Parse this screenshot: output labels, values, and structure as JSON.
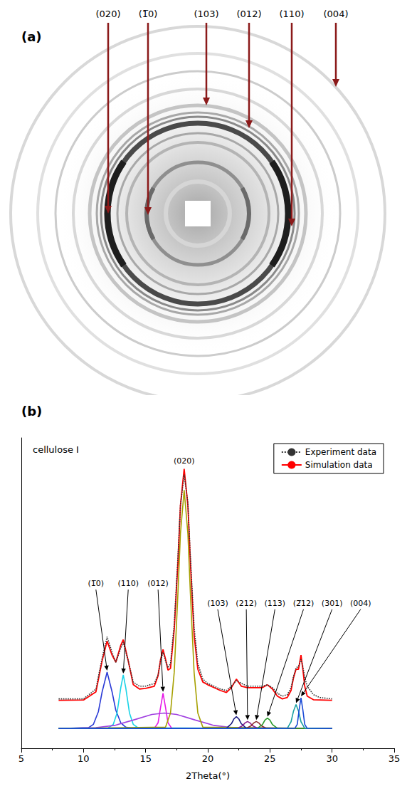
{
  "image_panel": {
    "letter": "(a)",
    "labels": [
      "(020)",
      "(1̅0)",
      "(103)",
      "(012)",
      "(110)",
      "(004)"
    ]
  },
  "chart_data": {
    "type": "line",
    "panel_label": "(b)",
    "annotations": [
      {
        "text": "cellulose I"
      }
    ],
    "xlabel": "2Theta(°)",
    "xlim": [
      5,
      35
    ],
    "xticks": [
      5,
      10,
      15,
      20,
      25,
      30,
      35
    ],
    "ylim": [
      0,
      110
    ],
    "tick_labels": "x",
    "grid": false,
    "legend": "upper right",
    "series": [
      {
        "name": "Experiment data",
        "color": "#333333",
        "line_style": "dotted",
        "x": [
          8,
          10,
          11,
          11.5,
          11.9,
          12.3,
          12.6,
          13.0,
          13.2,
          13.6,
          14.0,
          14.5,
          15.0,
          15.7,
          16.0,
          16.2,
          16.4,
          16.6,
          16.8,
          17.0,
          17.3,
          17.6,
          17.8,
          18.1,
          18.4,
          18.6,
          18.9,
          19.2,
          19.6,
          20.0,
          20.5,
          21.0,
          21.5,
          21.9,
          22.3,
          22.7,
          23.2,
          23.6,
          23.9,
          24.4,
          24.8,
          25.2,
          25.6,
          26.0,
          26.4,
          26.7,
          26.9,
          27.1,
          27.3,
          27.5,
          27.65,
          27.8,
          28.0,
          28.5,
          29,
          30
        ],
        "values": [
          17.5,
          17.5,
          21,
          32,
          39.5,
          34,
          30.5,
          35.5,
          37.5,
          31,
          23.5,
          22,
          22,
          23,
          26,
          31,
          34,
          31,
          28.5,
          30,
          44,
          68,
          86,
          97,
          87,
          68,
          43,
          30,
          24.5,
          23,
          22,
          21,
          20.5,
          22,
          24,
          23,
          22,
          22,
          22,
          22,
          22.5,
          21.5,
          19.5,
          18.5,
          19,
          21.5,
          25.5,
          28.5,
          29,
          31.5,
          29,
          25,
          22,
          19,
          18,
          17.5
        ]
      },
      {
        "name": "Simulation data",
        "color": "#ff0000",
        "line_style": "solid",
        "x": [
          8,
          10,
          11,
          11.5,
          11.9,
          12.3,
          12.6,
          13.0,
          13.2,
          13.6,
          14.0,
          14.5,
          15.0,
          15.7,
          16.0,
          16.2,
          16.4,
          16.6,
          16.8,
          17.0,
          17.3,
          17.6,
          17.8,
          18.1,
          18.4,
          18.6,
          18.9,
          19.2,
          19.6,
          20.0,
          20.5,
          21.0,
          21.5,
          21.9,
          22.3,
          22.7,
          23.2,
          23.6,
          23.9,
          24.4,
          24.8,
          25.2,
          25.6,
          26.0,
          26.4,
          26.7,
          26.9,
          27.1,
          27.3,
          27.5,
          27.65,
          27.8,
          28.0,
          28.5,
          30
        ],
        "values": [
          17,
          17.1,
          20,
          31,
          38,
          33,
          30.5,
          36.5,
          38.5,
          31,
          22.6,
          21,
          21.2,
          22,
          25.7,
          31.4,
          35,
          31.6,
          27.7,
          28.3,
          42,
          66,
          86,
          99,
          86,
          66,
          40,
          28,
          23.5,
          22.5,
          21.5,
          20.5,
          19.8,
          21.5,
          24.5,
          22,
          21.5,
          21.5,
          21.5,
          21.5,
          22.5,
          21,
          18.5,
          17.5,
          18,
          20.5,
          25,
          28,
          28,
          33,
          28,
          22,
          18.5,
          17.2,
          17
        ]
      }
    ],
    "components": [
      {
        "label": "(1̅0)",
        "color": "#2b3bd6",
        "x": [
          8,
          10.4,
          10.8,
          11.2,
          11.5,
          11.9,
          12.3,
          12.6,
          13.0,
          13.4,
          14.0,
          30
        ],
        "values": [
          7,
          7.3,
          8.5,
          13,
          20,
          27,
          20,
          13.5,
          9,
          7.5,
          7,
          7
        ]
      },
      {
        "label": "(110)",
        "color": "#19d3e6",
        "x": [
          8,
          12.0,
          12.4,
          12.7,
          13.0,
          13.2,
          13.4,
          13.7,
          14.0,
          14.4,
          30
        ],
        "values": [
          7,
          7.2,
          8.5,
          12.5,
          21.5,
          26,
          21.5,
          12.5,
          8.5,
          7.2,
          7
        ]
      },
      {
        "label": "(012)",
        "color": "#e619e6",
        "x": [
          8,
          15.7,
          16.0,
          16.2,
          16.4,
          16.6,
          16.8,
          17.1,
          30
        ],
        "values": [
          7,
          7.1,
          9.0,
          14.5,
          19.5,
          14.5,
          9.0,
          7.1,
          7
        ]
      },
      {
        "color": "#a040e0",
        "x": [
          8,
          11,
          12.5,
          14,
          15.5,
          16.5,
          17.5,
          19,
          20.5,
          22,
          30
        ],
        "values": [
          7,
          7.3,
          8.1,
          10.0,
          12.0,
          12.5,
          12.0,
          10.0,
          8.1,
          7.3,
          7
        ]
      },
      {
        "label": "(020)",
        "color": "#a6a000",
        "x": [
          8,
          16.6,
          17.0,
          17.3,
          17.6,
          17.8,
          18.1,
          18.4,
          18.6,
          18.9,
          19.2,
          19.6,
          30
        ],
        "values": [
          7,
          7.5,
          12.5,
          26.9,
          55,
          76,
          91.5,
          76,
          55,
          26.9,
          12.5,
          7.5,
          7
        ]
      },
      {
        "label": "(103)",
        "color": "#1a1a80",
        "x": [
          8,
          21.5,
          21.9,
          22.1,
          22.3,
          22.5,
          22.7,
          23.1,
          30
        ],
        "values": [
          7,
          7.1,
          8.7,
          10.4,
          11.2,
          10.4,
          8.7,
          7.1,
          7
        ]
      },
      {
        "label": "(212)",
        "color": "#8a1a8a",
        "x": [
          8,
          22.4,
          22.8,
          23.0,
          23.2,
          23.4,
          23.6,
          24.0,
          30
        ],
        "values": [
          7,
          7.05,
          8.0,
          9.0,
          9.5,
          9.0,
          8.0,
          7.05,
          7
        ]
      },
      {
        "label": "(113)",
        "color": "#8b2a2a",
        "x": [
          8,
          23.1,
          23.5,
          23.7,
          23.9,
          24.1,
          24.3,
          24.7,
          30
        ],
        "values": [
          7,
          7.05,
          8.0,
          9.0,
          9.5,
          9.0,
          8.0,
          7.05,
          7
        ]
      },
      {
        "label": "(2̅12)",
        "color": "#2a9a2a",
        "x": [
          8,
          24.0,
          24.4,
          24.6,
          24.8,
          25.0,
          25.2,
          25.6,
          30
        ],
        "values": [
          7,
          7.1,
          8.4,
          10.0,
          10.7,
          10.0,
          8.4,
          7.1,
          7
        ]
      },
      {
        "label": "(301)",
        "color": "#1aa0a0",
        "x": [
          8,
          26.4,
          26.7,
          26.9,
          27.1,
          27.3,
          27.5,
          27.8,
          30
        ],
        "values": [
          7,
          7.1,
          9.4,
          13.2,
          15.5,
          13.2,
          9.4,
          7.1,
          7
        ]
      },
      {
        "label": "(004)",
        "color": "#1a4ad6",
        "x": [
          8,
          27.0,
          27.2,
          27.35,
          27.5,
          27.65,
          27.8,
          28.0,
          30
        ],
        "values": [
          7,
          7.05,
          8.5,
          13.6,
          17.9,
          13.6,
          8.5,
          7.05,
          7
        ]
      }
    ]
  }
}
